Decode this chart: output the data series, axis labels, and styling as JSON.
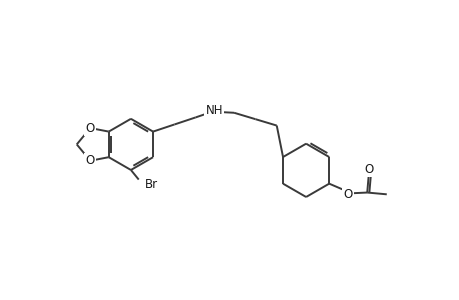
{
  "bg_color": "#ffffff",
  "line_color": "#3a3a3a",
  "text_color": "#1a1a1a",
  "linewidth": 1.4,
  "figsize": [
    4.6,
    3.0
  ],
  "dpi": 100,
  "xlim": [
    0,
    10
  ],
  "ylim": [
    0,
    6.5
  ]
}
